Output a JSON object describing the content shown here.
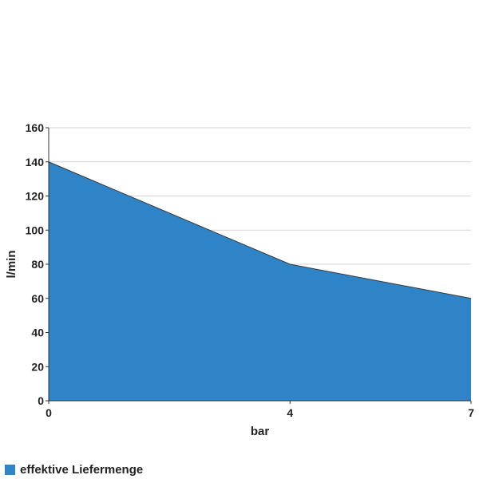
{
  "chart_data": {
    "type": "area",
    "title": "",
    "xlabel": "bar",
    "ylabel": "l/min",
    "x": [
      0,
      4,
      7
    ],
    "x_tick_labels": [
      "0",
      "4",
      "7"
    ],
    "ylim": [
      0,
      160
    ],
    "y_ticks": [
      0,
      20,
      40,
      60,
      80,
      100,
      120,
      140,
      160
    ],
    "grid": true,
    "legend_position": "bottom-left",
    "series": [
      {
        "name": "effektive Liefermenge",
        "values": [
          140,
          80,
          60
        ],
        "color": "#2e84c6"
      }
    ]
  }
}
